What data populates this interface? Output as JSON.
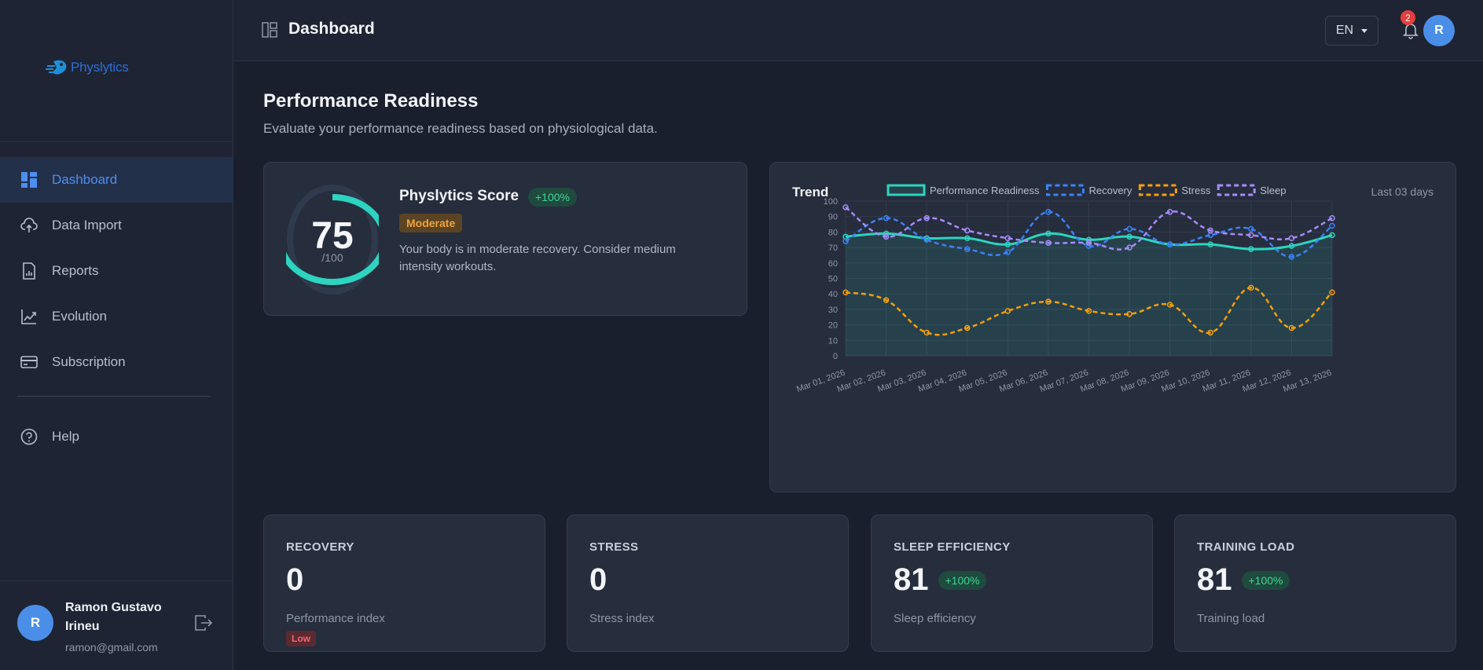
{
  "app": {
    "brand": "Physlytics"
  },
  "header": {
    "title": "Dashboard",
    "language": "EN",
    "notifications": "2",
    "avatar_initial": "R"
  },
  "sidebar": {
    "items": [
      {
        "label": "Dashboard",
        "icon": "dashboard-icon",
        "active": true
      },
      {
        "label": "Data Import",
        "icon": "cloud-upload-icon"
      },
      {
        "label": "Reports",
        "icon": "report-icon"
      },
      {
        "label": "Evolution",
        "icon": "trend-icon"
      },
      {
        "label": "Subscription",
        "icon": "credit-card-icon"
      },
      {
        "label": "Help",
        "icon": "help-icon"
      }
    ],
    "user": {
      "initial": "R",
      "name": "Ramon Gustavo Irineu",
      "email": "ramon@gmail.com"
    }
  },
  "main": {
    "title": "Performance Readiness",
    "subtitle": "Evaluate your performance readiness based on physiological data."
  },
  "score": {
    "value": "75",
    "max": "/100",
    "gauge_fraction": 0.75,
    "title": "Physlytics Score",
    "change": "+100%",
    "level": "Moderate",
    "description": "Your body is in moderate recovery. Consider medium intensity workouts."
  },
  "trend": {
    "title": "Trend",
    "range": "Last 03 days"
  },
  "chart_data": {
    "type": "line",
    "categories": [
      "Mar 01, 2026",
      "Mar 02, 2026",
      "Mar 03, 2026",
      "Mar 04, 2026",
      "Mar 05, 2026",
      "Mar 06, 2026",
      "Mar 07, 2026",
      "Mar 08, 2026",
      "Mar 09, 2026",
      "Mar 10, 2026",
      "Mar 11, 2026",
      "Mar 12, 2026",
      "Mar 13, 2026"
    ],
    "ylim": [
      0,
      100
    ],
    "yticks": [
      0,
      10,
      20,
      30,
      40,
      50,
      60,
      70,
      80,
      90,
      100
    ],
    "series": [
      {
        "name": "Performance Readiness",
        "color": "#2dd4bf",
        "dashed": false,
        "fill": true,
        "values": [
          77,
          79,
          76,
          76,
          72,
          79,
          75,
          77,
          72,
          72,
          69,
          71,
          78
        ]
      },
      {
        "name": "Recovery",
        "color": "#3b82f6",
        "dashed": true,
        "fill": false,
        "values": [
          74,
          89,
          75,
          69,
          67,
          93,
          71,
          82,
          72,
          78,
          82,
          64,
          84
        ]
      },
      {
        "name": "Stress",
        "color": "#f59e0b",
        "dashed": true,
        "fill": false,
        "values": [
          41,
          36,
          15,
          18,
          29,
          35,
          29,
          27,
          33,
          15,
          44,
          18,
          41
        ]
      },
      {
        "name": "Sleep",
        "color": "#a78bfa",
        "dashed": true,
        "fill": false,
        "values": [
          96,
          77,
          89,
          81,
          76,
          73,
          73,
          70,
          93,
          81,
          78,
          76,
          89
        ]
      }
    ]
  },
  "stats": [
    {
      "label": "RECOVERY",
      "value": "0",
      "sub": "Performance index",
      "badge": "Low"
    },
    {
      "label": "STRESS",
      "value": "0",
      "sub": "Stress index"
    },
    {
      "label": "SLEEP EFFICIENCY",
      "value": "81",
      "change": "+100%",
      "sub": "Sleep efficiency"
    },
    {
      "label": "TRAINING LOAD",
      "value": "81",
      "change": "+100%",
      "sub": "Training load"
    }
  ]
}
